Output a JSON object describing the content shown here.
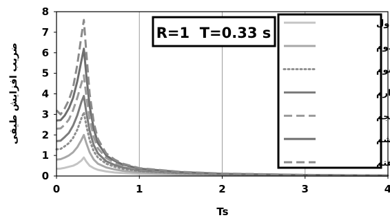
{
  "chart_data": {
    "type": "line",
    "annotation": "R=1  T=0.33 s",
    "xlabel": "Ts",
    "ylabel": "ضریب افزایش طیفی",
    "xlim": [
      0,
      4
    ],
    "ylim": [
      0,
      8
    ],
    "x_ticks": [
      "0",
      "1",
      "2",
      "3",
      "4"
    ],
    "y_ticks": [
      "0",
      "1",
      "2",
      "3",
      "4",
      "5",
      "6",
      "7",
      "8"
    ],
    "grid": "vertical",
    "legend_position": "right",
    "series": [
      {
        "name": "طبقه اول",
        "color": "#c4c4c4",
        "dash": "solid",
        "x": [
          0,
          0.05,
          0.1,
          0.15,
          0.2,
          0.25,
          0.3,
          0.33,
          0.36,
          0.4,
          0.45,
          0.5,
          0.6,
          0.7,
          0.8,
          1.0,
          1.5,
          2.0,
          3.0,
          4.0
        ],
        "y": [
          0.35,
          0.36,
          0.4,
          0.45,
          0.5,
          0.6,
          0.75,
          0.9,
          0.7,
          0.5,
          0.38,
          0.3,
          0.22,
          0.17,
          0.14,
          0.1,
          0.06,
          0.04,
          0.02,
          0.01
        ]
      },
      {
        "name": "طبقه دوم",
        "color": "#a8a8a8",
        "dash": "solid",
        "x": [
          0,
          0.05,
          0.1,
          0.15,
          0.2,
          0.25,
          0.3,
          0.33,
          0.36,
          0.4,
          0.45,
          0.5,
          0.6,
          0.7,
          0.8,
          1.0,
          1.5,
          2.0,
          3.0,
          4.0
        ],
        "y": [
          0.8,
          0.82,
          0.9,
          1.0,
          1.15,
          1.4,
          1.75,
          2.0,
          1.6,
          1.15,
          0.8,
          0.6,
          0.42,
          0.32,
          0.25,
          0.17,
          0.1,
          0.06,
          0.03,
          0.015
        ]
      },
      {
        "name": "طبقه سوم",
        "color": "#8f8f8f",
        "dash": "dotted",
        "x": [
          0,
          0.05,
          0.1,
          0.15,
          0.2,
          0.25,
          0.3,
          0.33,
          0.36,
          0.4,
          0.45,
          0.5,
          0.6,
          0.7,
          0.8,
          1.0,
          1.5,
          2.0,
          3.0,
          4.0
        ],
        "y": [
          1.3,
          1.32,
          1.45,
          1.6,
          1.85,
          2.25,
          2.8,
          3.1,
          2.45,
          1.75,
          1.2,
          0.9,
          0.6,
          0.45,
          0.35,
          0.23,
          0.13,
          0.08,
          0.04,
          0.02
        ]
      },
      {
        "name": "طبقه چهارم",
        "color": "#7c7c7c",
        "dash": "solid",
        "x": [
          0,
          0.05,
          0.1,
          0.15,
          0.2,
          0.25,
          0.3,
          0.33,
          0.36,
          0.4,
          0.45,
          0.5,
          0.6,
          0.7,
          0.8,
          1.0,
          1.5,
          2.0,
          3.0,
          4.0
        ],
        "y": [
          1.7,
          1.72,
          1.9,
          2.1,
          2.45,
          2.95,
          3.6,
          3.9,
          3.1,
          2.2,
          1.5,
          1.1,
          0.72,
          0.54,
          0.42,
          0.27,
          0.15,
          0.09,
          0.045,
          0.02
        ]
      },
      {
        "name": "طبقه پنجم",
        "color": "#9a9a9a",
        "dash": "dashed",
        "x": [
          0,
          0.05,
          0.1,
          0.15,
          0.2,
          0.25,
          0.3,
          0.33,
          0.36,
          0.4,
          0.45,
          0.5,
          0.6,
          0.7,
          0.8,
          1.0,
          1.5,
          2.0,
          3.0,
          4.0
        ],
        "y": [
          2.3,
          2.32,
          2.5,
          2.75,
          3.2,
          3.8,
          4.5,
          4.9,
          3.9,
          2.8,
          1.9,
          1.35,
          0.88,
          0.65,
          0.5,
          0.32,
          0.17,
          0.1,
          0.05,
          0.02
        ]
      },
      {
        "name": "طبقه ششم",
        "color": "#6e6e6e",
        "dash": "solid",
        "x": [
          0,
          0.05,
          0.1,
          0.15,
          0.2,
          0.25,
          0.3,
          0.33,
          0.36,
          0.4,
          0.45,
          0.5,
          0.6,
          0.7,
          0.8,
          1.0,
          1.5,
          2.0,
          3.0,
          4.0
        ],
        "y": [
          2.7,
          2.72,
          2.95,
          3.3,
          3.8,
          4.6,
          5.6,
          6.2,
          4.9,
          3.4,
          2.3,
          1.6,
          1.0,
          0.74,
          0.56,
          0.36,
          0.19,
          0.11,
          0.05,
          0.025
        ]
      },
      {
        "name": "طبقه هفتم",
        "color": "#8a8a8a",
        "dash": "dashed",
        "x": [
          0,
          0.05,
          0.1,
          0.15,
          0.2,
          0.25,
          0.3,
          0.33,
          0.36,
          0.4,
          0.45,
          0.5,
          0.6,
          0.7,
          0.8,
          1.0,
          1.5,
          2.0,
          3.0,
          4.0
        ],
        "y": [
          3.2,
          3.0,
          3.3,
          3.7,
          4.3,
          5.4,
          6.8,
          7.6,
          6.0,
          4.0,
          2.6,
          1.8,
          1.1,
          0.8,
          0.6,
          0.38,
          0.2,
          0.12,
          0.055,
          0.025
        ]
      }
    ]
  }
}
